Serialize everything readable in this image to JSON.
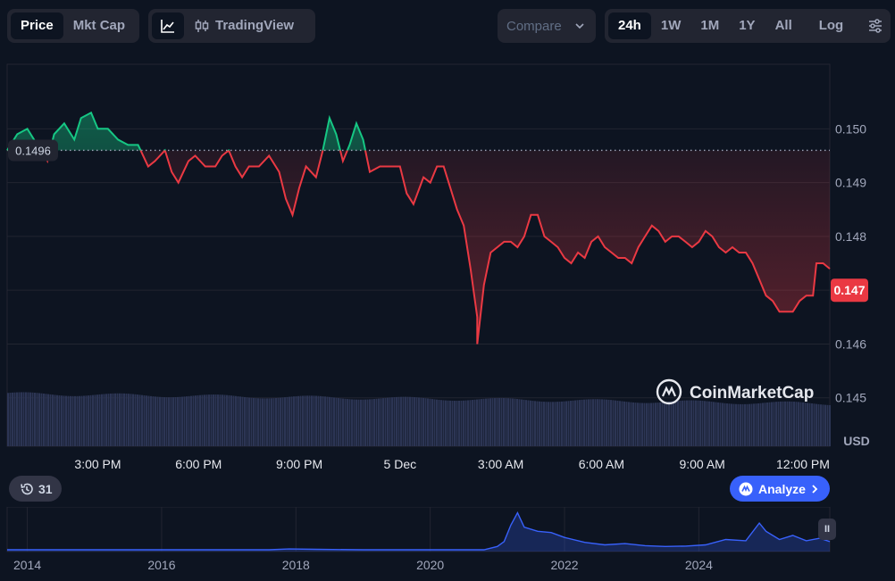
{
  "toolbar": {
    "metric_tabs": [
      "Price",
      "Mkt Cap"
    ],
    "tradingview_label": "TradingView",
    "compare_label": "Compare",
    "range_tabs": [
      "24h",
      "1W",
      "1M",
      "1Y",
      "All"
    ],
    "log_label": "Log"
  },
  "history_count": "31",
  "analyze_label": "Analyze",
  "watermark": "CoinMarketCap",
  "colors": {
    "up": "#16c784",
    "down": "#ea3943",
    "accent": "#3861fb",
    "volume": "#2c3554"
  },
  "chart_data": {
    "type": "line",
    "currency": "USD",
    "reference_price": 0.1496,
    "current_price": 0.147,
    "ylim": [
      0.1441,
      0.1512
    ],
    "y_ticks": [
      0.15,
      0.149,
      0.148,
      0.147,
      0.146,
      0.145
    ],
    "y_tick_labels": [
      "0.150",
      "0.149",
      "0.148",
      "0.147",
      "0.146",
      "0.145"
    ],
    "x_ticks": [
      {
        "label": "3:00 PM",
        "t": 3
      },
      {
        "label": "6:00 PM",
        "t": 6
      },
      {
        "label": "9:00 PM",
        "t": 9
      },
      {
        "label": "5 Dec",
        "t": 12
      },
      {
        "label": "3:00 AM",
        "t": 15
      },
      {
        "label": "6:00 AM",
        "t": 6.0
      },
      {
        "label": "9:00 AM",
        "t": 9.0
      },
      {
        "label": "12:00 PM",
        "t": 12.0
      }
    ],
    "x_range_hours": [
      0.3,
      24.8
    ],
    "series": [
      {
        "points": [
          [
            0.3,
            0.1496
          ],
          [
            0.6,
            0.1499
          ],
          [
            0.9,
            0.15
          ],
          [
            1.1,
            0.1498
          ],
          [
            1.3,
            0.1496
          ],
          [
            1.5,
            0.1494
          ],
          [
            1.7,
            0.1499
          ],
          [
            2.0,
            0.1501
          ],
          [
            2.3,
            0.1498
          ],
          [
            2.5,
            0.1502
          ],
          [
            2.8,
            0.1503
          ],
          [
            3.0,
            0.15
          ],
          [
            3.3,
            0.15
          ],
          [
            3.6,
            0.1498
          ],
          [
            3.9,
            0.1497
          ],
          [
            4.2,
            0.1497
          ],
          [
            4.5,
            0.1493
          ],
          [
            4.7,
            0.1494
          ],
          [
            5.0,
            0.1496
          ],
          [
            5.2,
            0.1492
          ],
          [
            5.4,
            0.149
          ],
          [
            5.7,
            0.1494
          ],
          [
            5.9,
            0.1495
          ],
          [
            6.2,
            0.1493
          ],
          [
            6.5,
            0.1493
          ],
          [
            6.7,
            0.1495
          ],
          [
            6.9,
            0.1496
          ],
          [
            7.1,
            0.1493
          ],
          [
            7.3,
            0.1491
          ],
          [
            7.5,
            0.1493
          ],
          [
            7.8,
            0.1493
          ],
          [
            8.1,
            0.1495
          ],
          [
            8.4,
            0.1492
          ],
          [
            8.6,
            0.1487
          ],
          [
            8.8,
            0.1484
          ],
          [
            9.0,
            0.1489
          ],
          [
            9.2,
            0.1493
          ],
          [
            9.5,
            0.1491
          ],
          [
            9.7,
            0.1496
          ],
          [
            9.9,
            0.1502
          ],
          [
            10.1,
            0.1499
          ],
          [
            10.3,
            0.1494
          ],
          [
            10.5,
            0.1497
          ],
          [
            10.7,
            0.1501
          ],
          [
            10.9,
            0.1498
          ],
          [
            11.1,
            0.1492
          ],
          [
            11.4,
            0.1493
          ],
          [
            11.7,
            0.1493
          ],
          [
            12.0,
            0.1493
          ],
          [
            12.2,
            0.1488
          ],
          [
            12.4,
            0.1486
          ],
          [
            12.7,
            0.1491
          ],
          [
            12.9,
            0.149
          ],
          [
            13.1,
            0.1493
          ],
          [
            13.3,
            0.1493
          ],
          [
            13.5,
            0.1489
          ],
          [
            13.7,
            0.1485
          ],
          [
            13.9,
            0.1482
          ],
          [
            14.1,
            0.1474
          ],
          [
            14.3,
            0.1465
          ],
          [
            14.3,
            0.146
          ],
          [
            14.5,
            0.1471
          ],
          [
            14.7,
            0.1477
          ],
          [
            14.9,
            0.1478
          ],
          [
            15.1,
            0.1479
          ],
          [
            15.3,
            0.1479
          ],
          [
            15.5,
            0.1478
          ],
          [
            15.7,
            0.148
          ],
          [
            15.9,
            0.1484
          ],
          [
            16.1,
            0.1484
          ],
          [
            16.3,
            0.148
          ],
          [
            16.5,
            0.1479
          ],
          [
            16.7,
            0.1478
          ],
          [
            16.9,
            0.1476
          ],
          [
            17.1,
            0.1475
          ],
          [
            17.3,
            0.1477
          ],
          [
            17.5,
            0.1476
          ],
          [
            17.7,
            0.1479
          ],
          [
            17.9,
            0.148
          ],
          [
            18.1,
            0.1478
          ],
          [
            18.3,
            0.1477
          ],
          [
            18.5,
            0.1476
          ],
          [
            18.7,
            0.1476
          ],
          [
            18.9,
            0.1475
          ],
          [
            19.1,
            0.1478
          ],
          [
            19.3,
            0.148
          ],
          [
            19.5,
            0.1482
          ],
          [
            19.7,
            0.1481
          ],
          [
            19.9,
            0.1479
          ],
          [
            20.1,
            0.148
          ],
          [
            20.3,
            0.148
          ],
          [
            20.5,
            0.1479
          ],
          [
            20.7,
            0.1478
          ],
          [
            20.9,
            0.1479
          ],
          [
            21.1,
            0.1481
          ],
          [
            21.3,
            0.148
          ],
          [
            21.5,
            0.1478
          ],
          [
            21.7,
            0.1477
          ],
          [
            21.9,
            0.1478
          ],
          [
            22.1,
            0.1477
          ],
          [
            22.3,
            0.1477
          ],
          [
            22.5,
            0.1475
          ],
          [
            22.7,
            0.1472
          ],
          [
            22.9,
            0.1469
          ],
          [
            23.1,
            0.1468
          ],
          [
            23.3,
            0.1466
          ],
          [
            23.5,
            0.1466
          ],
          [
            23.7,
            0.1466
          ],
          [
            23.9,
            0.1468
          ],
          [
            24.1,
            0.1469
          ],
          [
            24.3,
            0.1469
          ],
          [
            24.4,
            0.1475
          ],
          [
            24.6,
            0.1475
          ],
          [
            24.8,
            0.1474
          ]
        ]
      }
    ],
    "volume_level": 0.95
  },
  "overview": {
    "x_labels": [
      "2014",
      "2016",
      "2018",
      "2020",
      "2022",
      "2024"
    ],
    "label_t": [
      0.0,
      0.2,
      0.4,
      0.6,
      0.8,
      1.0
    ],
    "range": [
      2013.7,
      2025.95
    ],
    "series": [
      [
        2013.7,
        0.0
      ],
      [
        2017.6,
        0.0
      ],
      [
        2017.9,
        0.02
      ],
      [
        2018.3,
        0.01
      ],
      [
        2019.0,
        0.0
      ],
      [
        2020.8,
        0.0
      ],
      [
        2021.0,
        0.08
      ],
      [
        2021.1,
        0.2
      ],
      [
        2021.2,
        0.6
      ],
      [
        2021.3,
        0.9
      ],
      [
        2021.4,
        0.55
      ],
      [
        2021.6,
        0.45
      ],
      [
        2021.8,
        0.42
      ],
      [
        2022.0,
        0.3
      ],
      [
        2022.3,
        0.18
      ],
      [
        2022.6,
        0.12
      ],
      [
        2022.9,
        0.15
      ],
      [
        2023.2,
        0.1
      ],
      [
        2023.5,
        0.08
      ],
      [
        2023.8,
        0.09
      ],
      [
        2024.1,
        0.12
      ],
      [
        2024.4,
        0.25
      ],
      [
        2024.7,
        0.22
      ],
      [
        2024.9,
        0.65
      ],
      [
        2025.0,
        0.45
      ],
      [
        2025.2,
        0.25
      ],
      [
        2025.4,
        0.35
      ],
      [
        2025.6,
        0.22
      ],
      [
        2025.8,
        0.28
      ],
      [
        2025.95,
        0.2
      ]
    ]
  }
}
